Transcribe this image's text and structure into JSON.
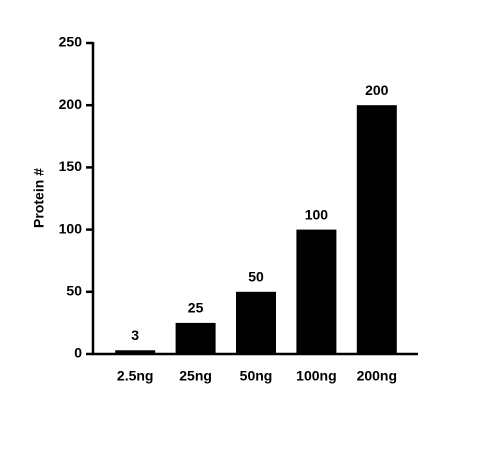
{
  "chart_data": {
    "type": "bar",
    "y_label": "Protein #",
    "categories": [
      "2.5ng",
      "25ng",
      "50ng",
      "100ng",
      "200ng"
    ],
    "values": [
      3,
      25,
      50,
      100,
      200
    ],
    "color": "#000000",
    "ylim": [
      0,
      250
    ],
    "yticks": [
      0,
      50,
      100,
      150,
      200,
      250
    ],
    "data_labels": true
  }
}
